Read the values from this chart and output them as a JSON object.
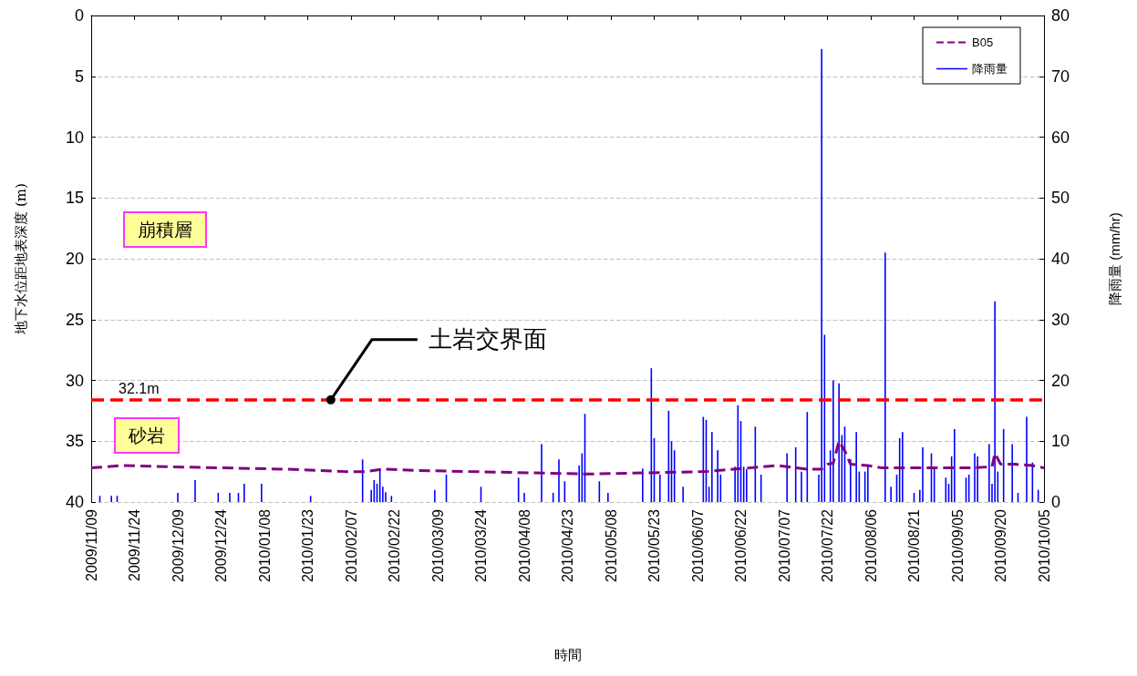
{
  "chart_data": {
    "type": "line",
    "xlabel": "時間",
    "ylabel": "地下水位距地表深度 (m)",
    "y2label": "降雨量 (mm/hr)",
    "xlim": [
      "2009-11-09",
      "2010-10-05"
    ],
    "xticks": [
      {
        "value": "2009-11-09",
        "label": "2009/11/09"
      },
      {
        "value": "2009-11-24",
        "label": "2009/11/24"
      },
      {
        "value": "2009-12-09",
        "label": "2009/12/09"
      },
      {
        "value": "2009-12-24",
        "label": "2009/12/24"
      },
      {
        "value": "2010-01-08",
        "label": "2010/01/08"
      },
      {
        "value": "2010-01-23",
        "label": "2010/01/23"
      },
      {
        "value": "2010-02-07",
        "label": "2010/02/07"
      },
      {
        "value": "2010-02-22",
        "label": "2010/02/22"
      },
      {
        "value": "2010-03-09",
        "label": "2010/03/09"
      },
      {
        "value": "2010-03-24",
        "label": "2010/03/24"
      },
      {
        "value": "2010-04-08",
        "label": "2010/04/08"
      },
      {
        "value": "2010-04-23",
        "label": "2010/04/23"
      },
      {
        "value": "2010-05-08",
        "label": "2010/05/08"
      },
      {
        "value": "2010-05-23",
        "label": "2010/05/23"
      },
      {
        "value": "2010-06-07",
        "label": "2010/06/07"
      },
      {
        "value": "2010-06-22",
        "label": "2010/06/22"
      },
      {
        "value": "2010-07-07",
        "label": "2010/07/07"
      },
      {
        "value": "2010-07-22",
        "label": "2010/07/22"
      },
      {
        "value": "2010-08-06",
        "label": "2010/08/06"
      },
      {
        "value": "2010-08-21",
        "label": "2010/08/21"
      },
      {
        "value": "2010-09-05",
        "label": "2010/09/05"
      },
      {
        "value": "2010-09-20",
        "label": "2010/09/20"
      },
      {
        "value": "2010-10-05",
        "label": "2010/10/05"
      }
    ],
    "ylim": [
      40,
      0
    ],
    "yticks": [
      0,
      5,
      10,
      15,
      20,
      25,
      30,
      35,
      40
    ],
    "y2lim": [
      0,
      80
    ],
    "y2ticks": [
      0,
      10,
      20,
      30,
      40,
      50,
      60,
      70,
      80
    ],
    "grid": "y",
    "legend": "top right",
    "series": [
      {
        "name": "B05",
        "line_style": "dashed",
        "marker": "none",
        "color": "#800080",
        "axis": "y",
        "x": [
          "2009-11-09",
          "2009-11-20",
          "2009-12-05",
          "2009-12-25",
          "2010-01-15",
          "2010-02-05",
          "2010-02-12",
          "2010-02-18",
          "2010-03-01",
          "2010-03-20",
          "2010-04-10",
          "2010-05-01",
          "2010-05-20",
          "2010-06-10",
          "2010-06-25",
          "2010-07-05",
          "2010-07-15",
          "2010-07-20",
          "2010-07-22",
          "2010-07-24",
          "2010-07-26",
          "2010-07-28",
          "2010-07-30",
          "2010-08-05",
          "2010-08-10",
          "2010-08-25",
          "2010-09-10",
          "2010-09-17",
          "2010-09-18",
          "2010-09-20",
          "2010-09-25",
          "2010-10-01",
          "2010-10-05"
        ],
        "values": [
          37.2,
          37.0,
          37.1,
          37.2,
          37.3,
          37.5,
          37.5,
          37.3,
          37.4,
          37.5,
          37.6,
          37.7,
          37.6,
          37.5,
          37.2,
          37.0,
          37.3,
          37.3,
          36.9,
          36.8,
          35.0,
          35.8,
          36.9,
          37.0,
          37.2,
          37.2,
          37.2,
          37.1,
          36.0,
          36.9,
          36.9,
          37.0,
          37.2
        ]
      },
      {
        "name": "降雨量",
        "type": "bar",
        "color": "#0000ff",
        "axis": "y2",
        "x": [
          "2009-11-12",
          "2009-11-16",
          "2009-11-18",
          "2009-12-09",
          "2009-12-15",
          "2009-12-23",
          "2009-12-27",
          "2009-12-30",
          "2010-01-01",
          "2010-01-07",
          "2010-01-24",
          "2010-02-11",
          "2010-02-14",
          "2010-02-15",
          "2010-02-16",
          "2010-02-17",
          "2010-02-18",
          "2010-02-19",
          "2010-02-21",
          "2010-03-08",
          "2010-03-12",
          "2010-03-24",
          "2010-04-06",
          "2010-04-08",
          "2010-04-14",
          "2010-04-18",
          "2010-04-20",
          "2010-04-22",
          "2010-04-27",
          "2010-04-28",
          "2010-04-29",
          "2010-05-04",
          "2010-05-07",
          "2010-05-19",
          "2010-05-22",
          "2010-05-23",
          "2010-05-25",
          "2010-05-28",
          "2010-05-29",
          "2010-05-30",
          "2010-06-02",
          "2010-06-09",
          "2010-06-10",
          "2010-06-11",
          "2010-06-12",
          "2010-06-14",
          "2010-06-15",
          "2010-06-20",
          "2010-06-21",
          "2010-06-22",
          "2010-06-23",
          "2010-06-24",
          "2010-06-27",
          "2010-06-29",
          "2010-07-08",
          "2010-07-11",
          "2010-07-13",
          "2010-07-15",
          "2010-07-19",
          "2010-07-20",
          "2010-07-21",
          "2010-07-23",
          "2010-07-24",
          "2010-07-26",
          "2010-07-27",
          "2010-07-28",
          "2010-07-30",
          "2010-08-01",
          "2010-08-02",
          "2010-08-04",
          "2010-08-05",
          "2010-08-11",
          "2010-08-13",
          "2010-08-15",
          "2010-08-16",
          "2010-08-17",
          "2010-08-21",
          "2010-08-23",
          "2010-08-24",
          "2010-08-27",
          "2010-08-28",
          "2010-09-01",
          "2010-09-02",
          "2010-09-03",
          "2010-09-04",
          "2010-09-08",
          "2010-09-09",
          "2010-09-11",
          "2010-09-12",
          "2010-09-16",
          "2010-09-17",
          "2010-09-18",
          "2010-09-19",
          "2010-09-21",
          "2010-09-24",
          "2010-09-26",
          "2010-09-29",
          "2010-10-01",
          "2010-10-03"
        ],
        "values": [
          1.0,
          1.0,
          1.0,
          1.5,
          3.6,
          1.5,
          1.5,
          1.5,
          3.0,
          3.0,
          1.0,
          7.0,
          2.0,
          3.6,
          3.0,
          5.5,
          2.5,
          1.6,
          1.0,
          2.0,
          4.5,
          2.5,
          4.0,
          1.5,
          9.5,
          1.5,
          7.0,
          3.4,
          6.0,
          8.0,
          14.5,
          3.4,
          1.5,
          5.5,
          22.0,
          10.5,
          4.5,
          15.0,
          10.0,
          8.5,
          2.5,
          14.0,
          13.5,
          2.5,
          11.5,
          8.5,
          4.5,
          5.8,
          15.9,
          13.3,
          5.8,
          5.4,
          12.4,
          4.5,
          8.0,
          9.0,
          5.0,
          14.8,
          4.5,
          74.5,
          27.5,
          8.5,
          20.0,
          19.5,
          11.0,
          12.4,
          7.0,
          11.5,
          5.0,
          5.0,
          6.0,
          41.0,
          2.5,
          4.5,
          10.5,
          11.5,
          1.5,
          2.0,
          9.0,
          8.0,
          5.5,
          4.0,
          3.0,
          7.5,
          12.0,
          4.0,
          4.5,
          8.0,
          7.5,
          9.5,
          3.0,
          33.0,
          5.0,
          12.0,
          9.5,
          1.5,
          14.0,
          6.5,
          2.0
        ]
      }
    ],
    "ref_lines": [
      {
        "axis": "y",
        "value": 31.6,
        "label": "32.1m",
        "color": "#ff0000",
        "line_style": "dashed"
      }
    ],
    "annotations": [
      {
        "text": "土岩交界面",
        "x": "2010-01-31",
        "y": 31.6
      },
      "崩積層",
      "砂岩"
    ]
  }
}
